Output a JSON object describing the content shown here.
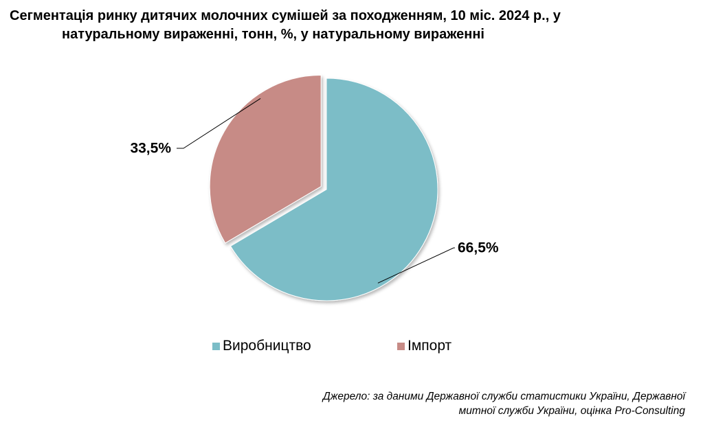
{
  "chart_data": {
    "type": "pie",
    "title_line1": "Сегментація ринку дитячих молочних сумішей за походженням, 10 міс. 2024 р., у",
    "title_line2": "натуральному вираженні, тонн, %, у натуральному вираженні",
    "slices": [
      {
        "name": "Виробництво",
        "value": 66.5,
        "label": "66,5%",
        "color": "#7bbdc7"
      },
      {
        "name": "Імпорт",
        "value": 33.5,
        "label": "33,5%",
        "color": "#c78b86"
      }
    ],
    "legend_position": "bottom"
  },
  "source": {
    "line1": "Джерело: за даними Державної служби статистики України, Державної",
    "line2": "митної служби України, оцінка Pro-Consulting"
  }
}
